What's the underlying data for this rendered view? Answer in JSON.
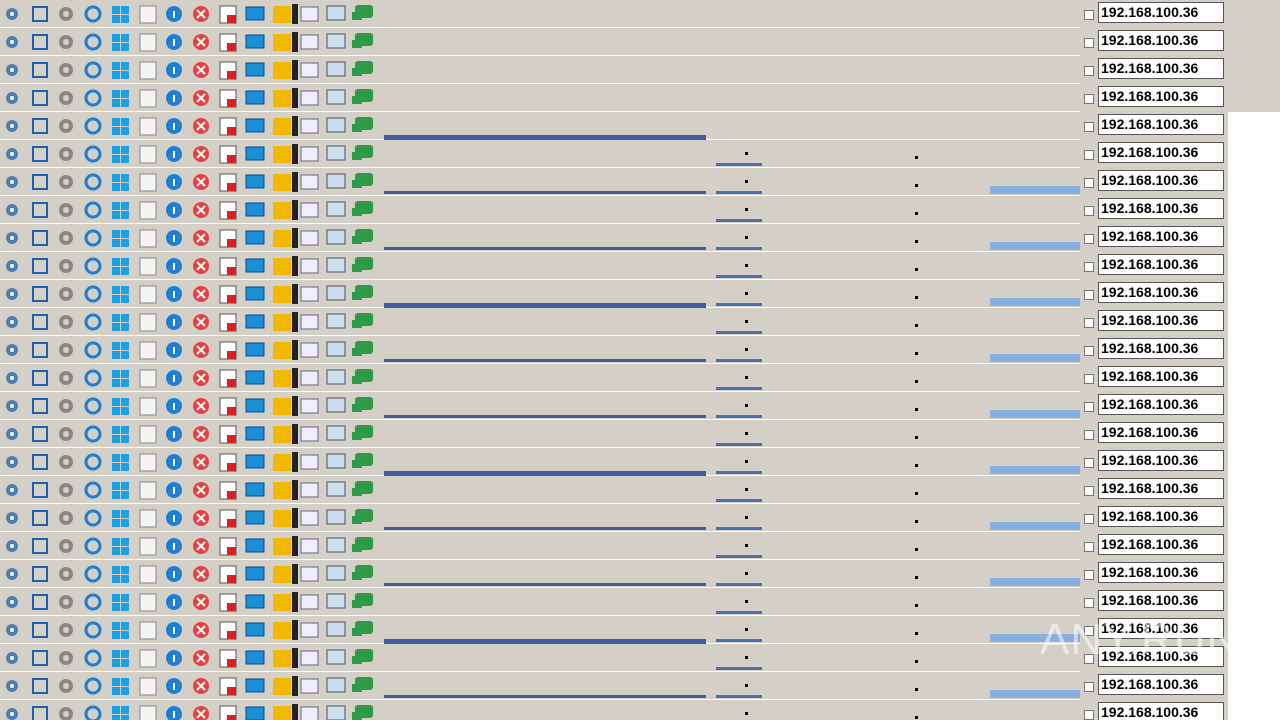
{
  "toolbar_rows": [
    {
      "address": "192.168.100.36"
    },
    {
      "address": "192.168.100.36"
    },
    {
      "address": "192.168.100.36"
    },
    {
      "address": "192.168.100.36"
    },
    {
      "address": "192.168.100.36"
    },
    {
      "address": "192.168.100.36"
    },
    {
      "address": "192.168.100.36"
    },
    {
      "address": "192.168.100.36"
    },
    {
      "address": "192.168.100.36"
    },
    {
      "address": "192.168.100.36"
    },
    {
      "address": "192.168.100.36"
    },
    {
      "address": "192.168.100.36"
    },
    {
      "address": "192.168.100.36"
    },
    {
      "address": "192.168.100.36"
    },
    {
      "address": "192.168.100.36"
    },
    {
      "address": "192.168.100.36"
    },
    {
      "address": "192.168.100.36"
    },
    {
      "address": "192.168.100.36"
    },
    {
      "address": "192.168.100.36"
    },
    {
      "address": "192.168.100.36"
    },
    {
      "address": "192.168.100.36"
    },
    {
      "address": "192.168.100.36"
    },
    {
      "address": "192.168.100.36"
    },
    {
      "address": "192.168.100.36"
    },
    {
      "address": "192.168.100.36"
    },
    {
      "address": "192.168.100.36"
    }
  ],
  "watermark": "ANY.RUN"
}
